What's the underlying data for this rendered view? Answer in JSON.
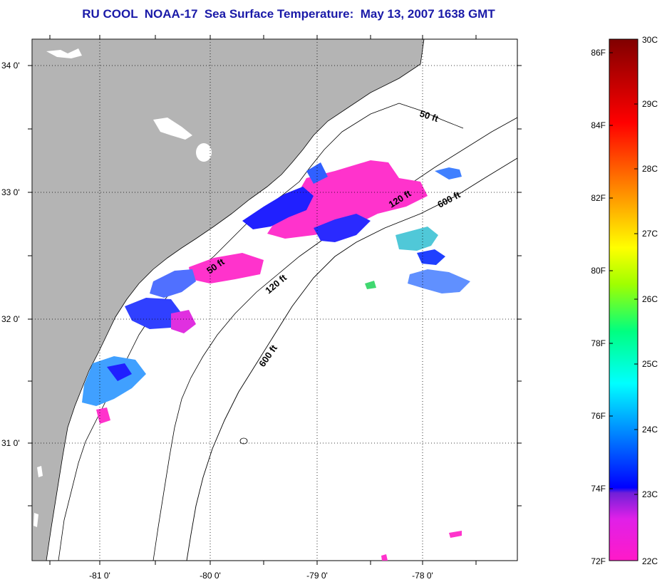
{
  "title": "RU COOL  NOAA-17  Sea Surface Temperature:  May 13, 2007 1638 GMT",
  "map": {
    "lat_labels": [
      "34 0'",
      "33 0'",
      "32 0'",
      "31 0'"
    ],
    "lon_labels": [
      "-81 0'",
      "-80 0'",
      "-79 0'",
      "-78 0'"
    ],
    "isobath_labels": [
      "50 ft",
      "50 ft",
      "120 ft",
      "120 ft",
      "600 ft",
      "600 ft"
    ]
  },
  "colorbar": {
    "fahrenheit_labels": [
      "86F",
      "84F",
      "82F",
      "80F",
      "78F",
      "76F",
      "74F",
      "72F"
    ],
    "celsius_labels": [
      "30C",
      "29C",
      "28C",
      "27C",
      "26C",
      "25C",
      "24C",
      "23C",
      "22C"
    ]
  },
  "colors": {
    "title": "#1a1aa8",
    "land": "#b4b4b4",
    "sea": "#ffffff"
  }
}
